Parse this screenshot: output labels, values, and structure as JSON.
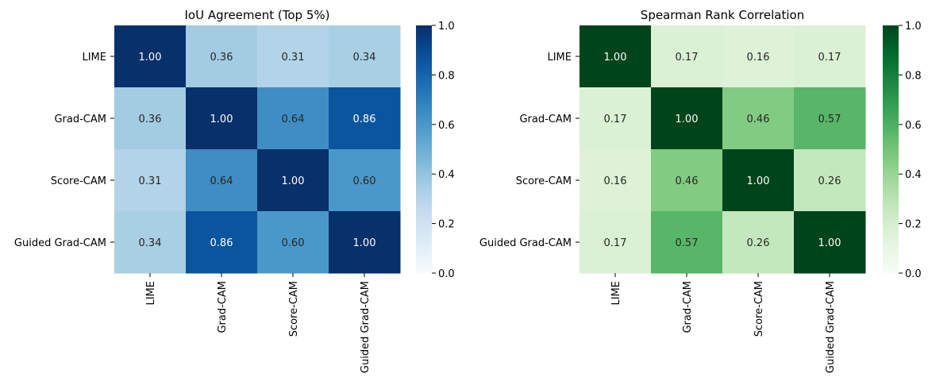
{
  "chart_data": [
    {
      "type": "heatmap",
      "title": "IoU Agreement (Top 5%)",
      "x_categories": [
        "LIME",
        "Grad-CAM",
        "Score-CAM",
        "Guided Grad-CAM"
      ],
      "y_categories": [
        "LIME",
        "Grad-CAM",
        "Score-CAM",
        "Guided Grad-CAM"
      ],
      "values": [
        [
          1.0,
          0.36,
          0.31,
          0.34
        ],
        [
          0.36,
          1.0,
          0.64,
          0.86
        ],
        [
          0.31,
          0.64,
          1.0,
          0.6
        ],
        [
          0.34,
          0.86,
          0.6,
          1.0
        ]
      ],
      "value_labels": [
        [
          "1.00",
          "0.36",
          "0.31",
          "0.34"
        ],
        [
          "0.36",
          "1.00",
          "0.64",
          "0.86"
        ],
        [
          "0.31",
          "0.64",
          "1.00",
          "0.60"
        ],
        [
          "0.34",
          "0.86",
          "0.60",
          "1.00"
        ]
      ],
      "colormap": "Blues",
      "vmin": 0.0,
      "vmax": 1.0,
      "colorbar_ticks": [
        "0.0",
        "0.2",
        "0.4",
        "0.6",
        "0.8",
        "1.0"
      ]
    },
    {
      "type": "heatmap",
      "title": "Spearman Rank Correlation",
      "x_categories": [
        "LIME",
        "Grad-CAM",
        "Score-CAM",
        "Guided Grad-CAM"
      ],
      "y_categories": [
        "LIME",
        "Grad-CAM",
        "Score-CAM",
        "Guided Grad-CAM"
      ],
      "values": [
        [
          1.0,
          0.17,
          0.16,
          0.17
        ],
        [
          0.17,
          1.0,
          0.46,
          0.57
        ],
        [
          0.16,
          0.46,
          1.0,
          0.26
        ],
        [
          0.17,
          0.57,
          0.26,
          1.0
        ]
      ],
      "value_labels": [
        [
          "1.00",
          "0.17",
          "0.16",
          "0.17"
        ],
        [
          "0.17",
          "1.00",
          "0.46",
          "0.57"
        ],
        [
          "0.16",
          "0.46",
          "1.00",
          "0.26"
        ],
        [
          "0.17",
          "0.57",
          "0.26",
          "1.00"
        ]
      ],
      "colormap": "Greens",
      "vmin": 0.0,
      "vmax": 1.0,
      "colorbar_ticks": [
        "0.0",
        "0.2",
        "0.4",
        "0.6",
        "0.8",
        "1.0"
      ]
    }
  ]
}
